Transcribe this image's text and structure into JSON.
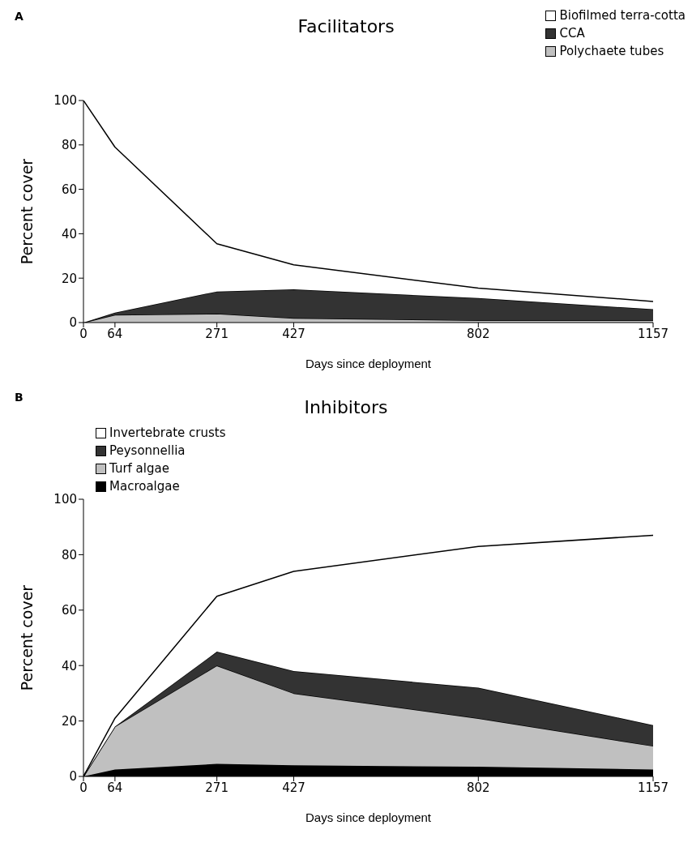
{
  "chart_data": [
    {
      "type": "area",
      "title": "Facilitators",
      "xlabel": "Days since deployment",
      "ylabel": "Percent cover",
      "annotations": [
        "A"
      ],
      "stacked": true,
      "x": [
        0,
        64,
        271,
        427,
        802,
        1157
      ],
      "xlim": [
        0,
        1157
      ],
      "xticks": [
        0,
        64,
        271,
        427,
        802,
        1157
      ],
      "ylim": [
        0,
        100
      ],
      "yticks": [
        0,
        20,
        40,
        60,
        80,
        100
      ],
      "grid": false,
      "legend": "top right",
      "series": [
        {
          "name": "Polychaete tubes",
          "color": "#c0c0c0",
          "values": [
            0,
            3.5,
            4,
            2,
            1,
            1
          ]
        },
        {
          "name": "CCA",
          "color": "#333333",
          "values": [
            0,
            1,
            10,
            13,
            10,
            5
          ]
        },
        {
          "name": "Biofilmed terra-cotta",
          "color": "#ffffff",
          "values": [
            100,
            74.5,
            21.5,
            11,
            4.5,
            3.5
          ]
        }
      ]
    },
    {
      "type": "area",
      "title": "Inhibitors",
      "xlabel": "Days since deployment",
      "ylabel": "Percent cover",
      "annotations": [
        "B"
      ],
      "stacked": true,
      "x": [
        0,
        64,
        271,
        427,
        802,
        1157
      ],
      "xlim": [
        0,
        1157
      ],
      "xticks": [
        0,
        64,
        271,
        427,
        802,
        1157
      ],
      "ylim": [
        0,
        100
      ],
      "yticks": [
        0,
        20,
        40,
        60,
        80,
        100
      ],
      "grid": false,
      "legend": "top left",
      "series": [
        {
          "name": "Macroalgae",
          "color": "#000000",
          "values": [
            0,
            2.5,
            4.5,
            4,
            3.5,
            2.5
          ]
        },
        {
          "name": "Turf algae",
          "color": "#c0c0c0",
          "values": [
            0,
            15.5,
            35.5,
            26,
            17.5,
            8.5
          ]
        },
        {
          "name": "Peysonnellia",
          "color": "#333333",
          "values": [
            0,
            0,
            5,
            8,
            11,
            7.5
          ]
        },
        {
          "name": "Invertebrate crusts",
          "color": "#ffffff",
          "values": [
            0,
            3,
            20,
            36,
            51,
            68.5
          ]
        }
      ]
    }
  ]
}
